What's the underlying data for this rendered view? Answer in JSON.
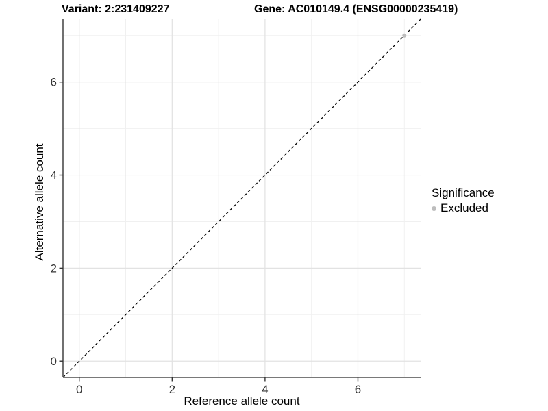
{
  "header": {
    "variant_title": "Variant: 2:231409227",
    "gene_title": "Gene: AC010149.4 (ENSG00000235419)"
  },
  "axes": {
    "x_label": "Reference allele count",
    "y_label": "Alternative allele count"
  },
  "legend": {
    "title": "Significance",
    "items": [
      {
        "label": "Excluded",
        "color": "#bdbdbd"
      }
    ]
  },
  "colors": {
    "background": "#ffffff",
    "axis_line": "#4d4d4d",
    "tick_mark": "#343434",
    "tick_label": "#333333",
    "grid_major": "#e2e2e2",
    "grid_minor": "#f0f0f0",
    "identity_line": "#000000",
    "excluded_point": "#bdbdbd"
  },
  "chart_data": {
    "type": "scatter",
    "title": "Variant: 2:231409227 — Gene: AC010149.4 (ENSG00000235419)",
    "xlabel": "Reference allele count",
    "ylabel": "Alternative allele count",
    "xlim": [
      -0.35,
      7.35
    ],
    "ylim": [
      -0.35,
      7.35
    ],
    "x_major_ticks": [
      0,
      2,
      4,
      6
    ],
    "y_major_ticks": [
      0,
      2,
      4,
      6
    ],
    "x_minor_ticks": [
      1,
      3,
      5,
      7
    ],
    "y_minor_ticks": [
      1,
      3,
      5,
      7
    ],
    "grid": true,
    "legend_position": "right",
    "identity_line": {
      "slope": 1,
      "intercept": 0,
      "style": "dashed",
      "color": "#000000"
    },
    "series": [
      {
        "name": "Excluded",
        "color": "#bdbdbd",
        "points": [
          {
            "x": 7,
            "y": 7
          }
        ]
      }
    ]
  }
}
